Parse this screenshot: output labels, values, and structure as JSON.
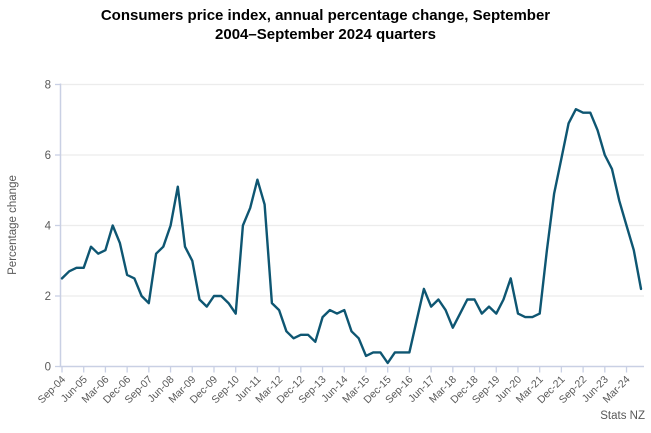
{
  "header": {
    "title_lines": [
      "Consumers price index, annual percentage change, September",
      "2004–September 2024 quarters"
    ]
  },
  "source_label": "Stats NZ",
  "colors": {
    "line": "#0e5672",
    "grid": "#ececec",
    "axis": "#c9d0e4",
    "tick_text": "#595959",
    "title_text": "#000000"
  },
  "chart_data": {
    "type": "line",
    "title": "Consumers price index, annual percentage change, September 2004–September 2024 quarters",
    "xlabel": "",
    "ylabel": "Percentage change",
    "ylim": [
      0,
      8
    ],
    "y_ticks": [
      0,
      2,
      4,
      6,
      8
    ],
    "grid": "horizontal",
    "legend": "none",
    "series_name": "CPI annual percentage change",
    "x_tick_labels": [
      "Sep-04",
      "Jun-05",
      "Mar-06",
      "Dec-06",
      "Sep-07",
      "Jun-08",
      "Mar-09",
      "Dec-09",
      "Sep-10",
      "Jun-11",
      "Mar-12",
      "Dec-12",
      "Sep-13",
      "Jun-14",
      "Mar-15",
      "Dec-15",
      "Sep-16",
      "Jun-17",
      "Mar-18",
      "Dec-18",
      "Sep-19",
      "Jun-20",
      "Mar-21",
      "Dec-21",
      "Sep-22",
      "Jun-23",
      "Mar-24"
    ],
    "x_tick_every": 3,
    "x": [
      "Sep-04",
      "Dec-04",
      "Mar-05",
      "Jun-05",
      "Sep-05",
      "Dec-05",
      "Mar-06",
      "Jun-06",
      "Sep-06",
      "Dec-06",
      "Mar-07",
      "Jun-07",
      "Sep-07",
      "Dec-07",
      "Mar-08",
      "Jun-08",
      "Sep-08",
      "Dec-08",
      "Mar-09",
      "Jun-09",
      "Sep-09",
      "Dec-09",
      "Mar-10",
      "Jun-10",
      "Sep-10",
      "Dec-10",
      "Mar-11",
      "Jun-11",
      "Sep-11",
      "Dec-11",
      "Mar-12",
      "Jun-12",
      "Sep-12",
      "Dec-12",
      "Mar-13",
      "Jun-13",
      "Sep-13",
      "Dec-13",
      "Mar-14",
      "Jun-14",
      "Sep-14",
      "Dec-14",
      "Mar-15",
      "Jun-15",
      "Sep-15",
      "Dec-15",
      "Mar-16",
      "Jun-16",
      "Sep-16",
      "Dec-16",
      "Mar-17",
      "Jun-17",
      "Sep-17",
      "Dec-17",
      "Mar-18",
      "Jun-18",
      "Sep-18",
      "Dec-18",
      "Mar-19",
      "Jun-19",
      "Sep-19",
      "Dec-19",
      "Mar-20",
      "Jun-20",
      "Sep-20",
      "Dec-20",
      "Mar-21",
      "Jun-21",
      "Sep-21",
      "Dec-21",
      "Mar-22",
      "Jun-22",
      "Sep-22",
      "Dec-22",
      "Mar-23",
      "Jun-23",
      "Sep-23",
      "Dec-23",
      "Mar-24",
      "Jun-24",
      "Sep-24"
    ],
    "values": [
      2.5,
      2.7,
      2.8,
      2.8,
      3.4,
      3.2,
      3.3,
      4.0,
      3.5,
      2.6,
      2.5,
      2.0,
      1.8,
      3.2,
      3.4,
      4.0,
      5.1,
      3.4,
      3.0,
      1.9,
      1.7,
      2.0,
      2.0,
      1.8,
      1.5,
      4.0,
      4.5,
      5.3,
      4.6,
      1.8,
      1.6,
      1.0,
      0.8,
      0.9,
      0.9,
      0.7,
      1.4,
      1.6,
      1.5,
      1.6,
      1.0,
      0.8,
      0.3,
      0.4,
      0.4,
      0.1,
      0.4,
      0.4,
      0.4,
      1.3,
      2.2,
      1.7,
      1.9,
      1.6,
      1.1,
      1.5,
      1.9,
      1.9,
      1.5,
      1.7,
      1.5,
      1.9,
      2.5,
      1.5,
      1.4,
      1.4,
      1.5,
      3.3,
      4.9,
      5.9,
      6.9,
      7.3,
      7.2,
      7.2,
      6.7,
      6.0,
      5.6,
      4.7,
      4.0,
      3.3,
      2.2
    ]
  }
}
